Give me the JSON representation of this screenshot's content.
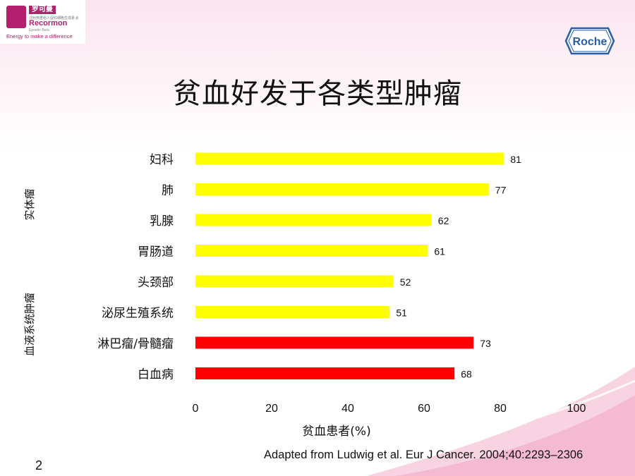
{
  "header": {
    "logo": {
      "cn_name": "罗可曼",
      "cn_subtitle": "注射用重组人促红细胞生成素-β",
      "brand": "Recormon",
      "brand_sub": "Epoetin Beta",
      "tagline": "Energy to make a difference"
    },
    "company_logo": "Roche"
  },
  "slide": {
    "title": "贫血好发于各类型肿瘤",
    "citation": "Adapted from Ludwig et al. Eur J Cancer. 2004;40:2293–2306",
    "page_number": "2"
  },
  "colors": {
    "solid_tumor": "#ffff00",
    "hematologic": "#ff0000",
    "accent": "#b3206b"
  },
  "chart_data": {
    "type": "bar",
    "orientation": "horizontal",
    "categories": [
      "妇科",
      "肺",
      "乳腺",
      "胃肠道",
      "头颈部",
      "泌尿生殖系统",
      "淋巴瘤/骨髓瘤",
      "白血病"
    ],
    "values": [
      81,
      77,
      62,
      61,
      52,
      51,
      73,
      68
    ],
    "groups": [
      {
        "label": "实体瘤",
        "start": 0,
        "end": 5,
        "color": "#ffff00"
      },
      {
        "label": "血液系统肿瘤",
        "start": 6,
        "end": 7,
        "color": "#ff0000"
      }
    ],
    "xlabel": "贫血患者(%)",
    "xlim": [
      0,
      100
    ],
    "xticks": [
      0,
      20,
      40,
      60,
      80,
      100
    ],
    "data_labels": true,
    "grid": false,
    "legend": "none"
  }
}
